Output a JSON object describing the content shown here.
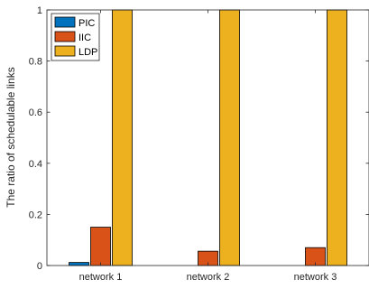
{
  "chart_data": {
    "type": "bar",
    "title": "",
    "xlabel": "",
    "ylabel": "The ratio of schedulable links",
    "categories": [
      "network 1",
      "network 2",
      "network 3"
    ],
    "series": [
      {
        "name": "PIC",
        "values": [
          0.012,
          0.0,
          0.0
        ],
        "color": "#0072BD"
      },
      {
        "name": "IIC",
        "values": [
          0.15,
          0.056,
          0.07
        ],
        "color": "#D95319"
      },
      {
        "name": "LDP",
        "values": [
          1.0,
          1.0,
          1.0
        ],
        "color": "#EDB120"
      }
    ],
    "ylim": [
      0,
      1
    ],
    "yticks": [
      0,
      0.2,
      0.4,
      0.6,
      0.8,
      1
    ],
    "ytick_labels": [
      "0",
      "0.2",
      "0.4",
      "0.6",
      "0.8",
      "1"
    ],
    "grid": false,
    "legend_position": "top-left"
  }
}
